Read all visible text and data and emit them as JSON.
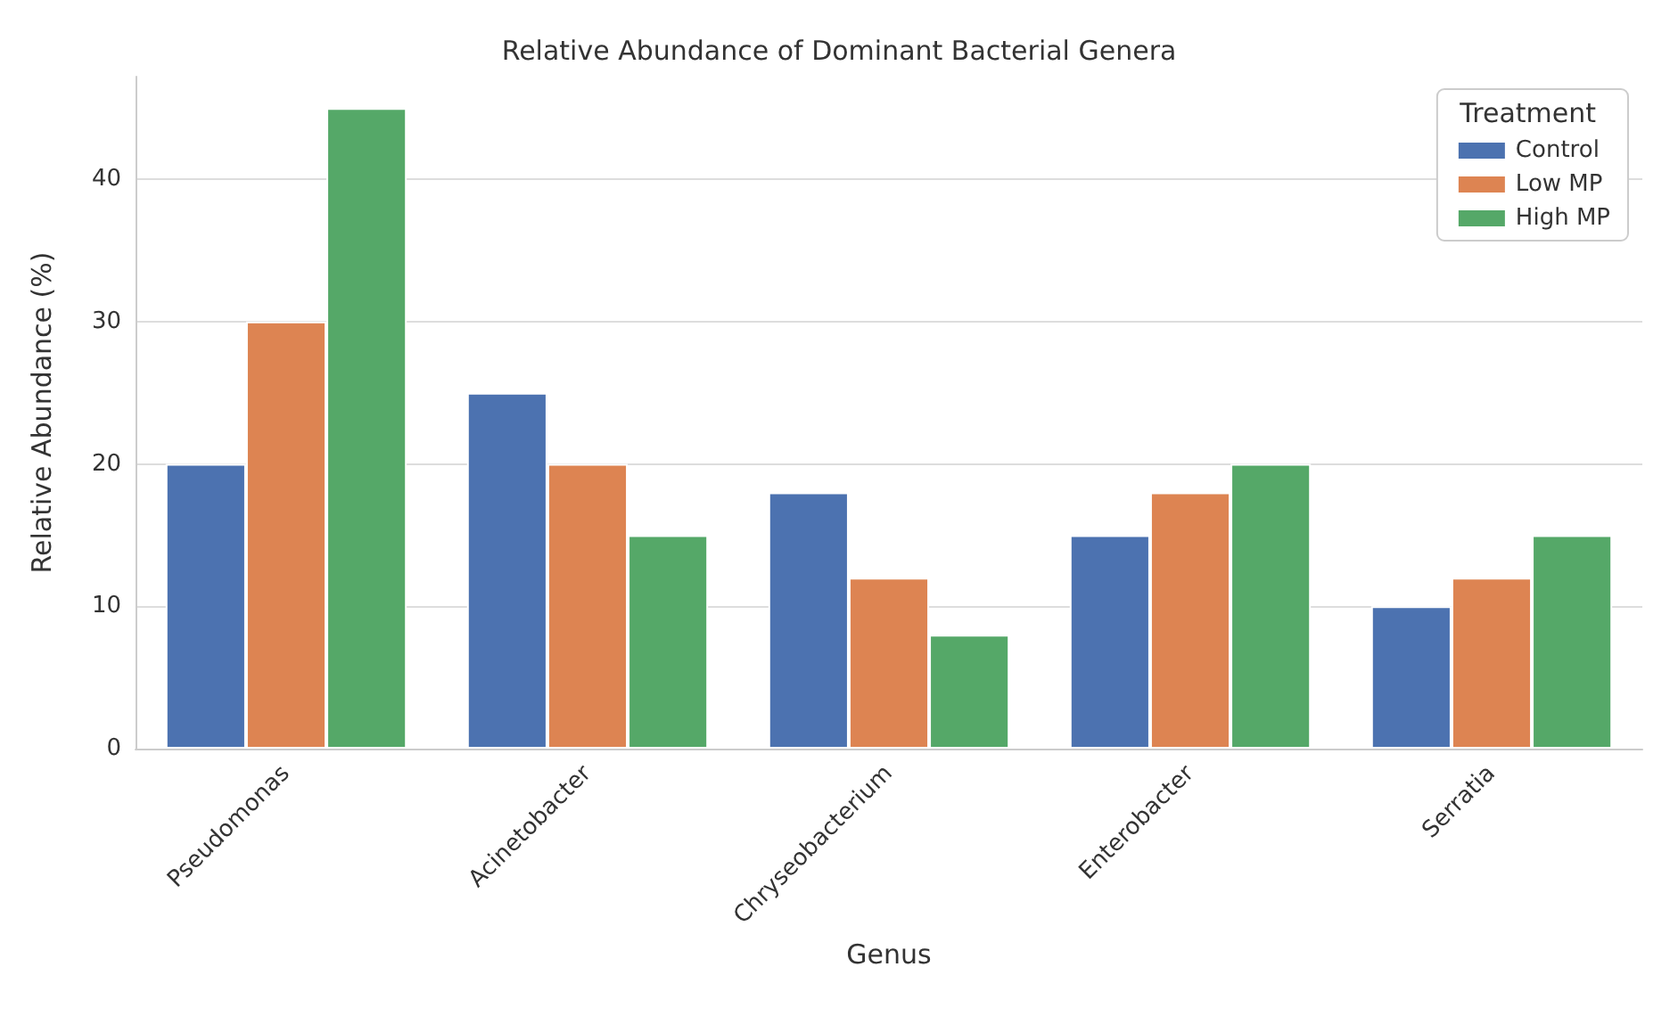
{
  "chart_data": {
    "type": "bar",
    "title": "Relative Abundance of Dominant Bacterial Genera",
    "xlabel": "Genus",
    "ylabel": "Relative Abundance (%)",
    "legend_title": "Treatment",
    "categories": [
      "Pseudomonas",
      "Acinetobacter",
      "Chryseobacterium",
      "Enterobacter",
      "Serratia"
    ],
    "series": [
      {
        "name": "Control",
        "color": "#4c72b0",
        "values": [
          20,
          25,
          18,
          15,
          10
        ]
      },
      {
        "name": "Low MP",
        "color": "#dd8452",
        "values": [
          30,
          20,
          12,
          18,
          12
        ]
      },
      {
        "name": "High MP",
        "color": "#55a868",
        "values": [
          45,
          15,
          8,
          20,
          15
        ]
      }
    ],
    "ylim": [
      0,
      47.2
    ],
    "yticks": [
      0,
      10,
      20,
      30,
      40
    ],
    "grid": "y",
    "legend": "top right"
  }
}
